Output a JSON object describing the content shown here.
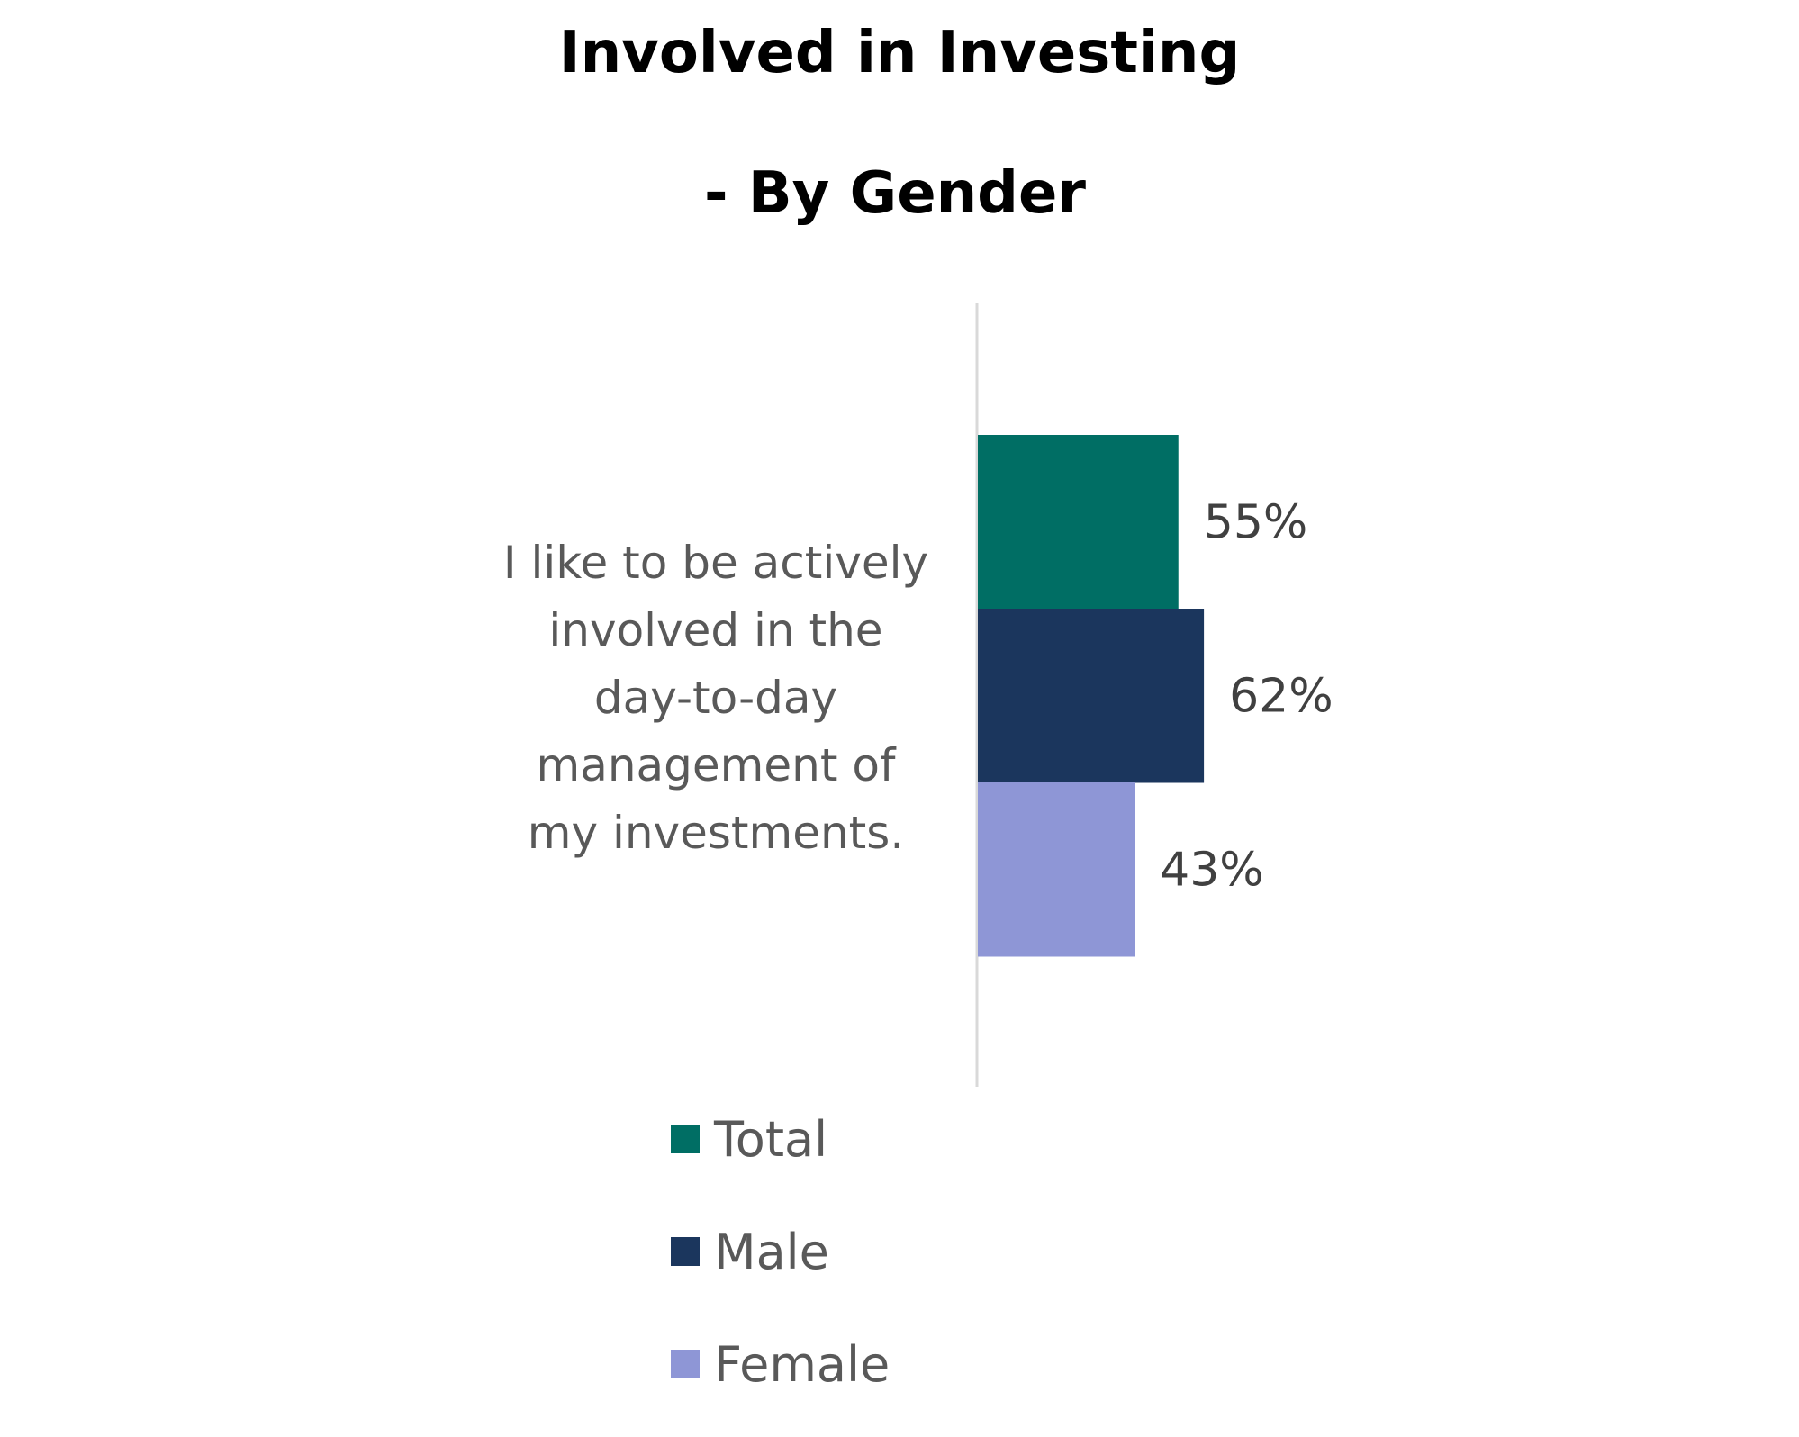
{
  "chart_data": {
    "type": "bar",
    "orientation": "horizontal",
    "title": "Involved in Investing",
    "subtitle": "- By Gender",
    "categories": [
      "I like to be actively involved in the day-to-day management of my investments."
    ],
    "category_lines": [
      "I like to be actively",
      "involved in the",
      "day-to-day",
      "management of",
      "my investments."
    ],
    "series": [
      {
        "name": "Total",
        "values": [
          55
        ],
        "label": "55%",
        "color": "#006e64"
      },
      {
        "name": "Male",
        "values": [
          62
        ],
        "label": "62%",
        "color": "#1b365d"
      },
      {
        "name": "Female",
        "values": [
          43
        ],
        "label": "43%",
        "color": "#8e96d6"
      }
    ],
    "unit": "%",
    "legend_position": "bottom",
    "grid": false
  }
}
